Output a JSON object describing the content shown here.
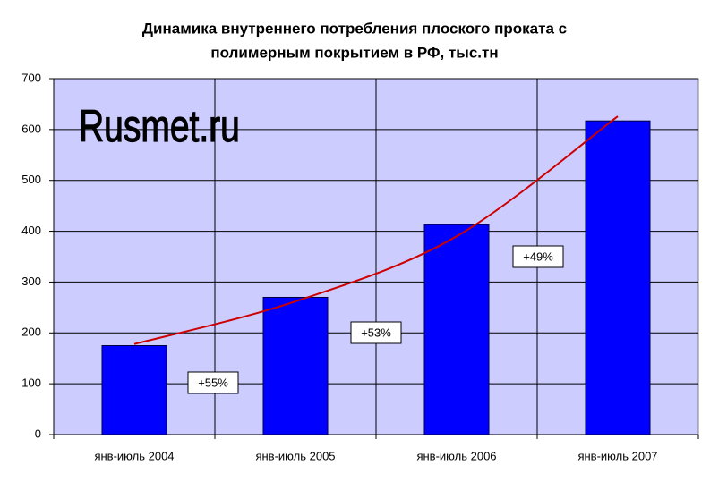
{
  "chart_data": {
    "type": "bar",
    "title": [
      "Динамика внутреннего потребления плоского проката с",
      "полимерным покрытием в РФ, тыс.тн"
    ],
    "watermark": "Rusmet.ru",
    "categories": [
      "янв-июль 2004",
      "янв-июль 2005",
      "янв-июль 2006",
      "янв-июль 2007"
    ],
    "values": [
      175,
      270,
      413,
      617
    ],
    "color": "#0000ff",
    "trendline": {
      "color": "#cc0000",
      "values": [
        178,
        262,
        390,
        626
      ]
    },
    "annotations": [
      "+55%",
      "+53%",
      "+49%"
    ],
    "ylim": [
      0,
      700
    ],
    "yticks": [
      0,
      100,
      200,
      300,
      400,
      500,
      600,
      700
    ],
    "grid": true,
    "plot_background": "#ccccff"
  }
}
